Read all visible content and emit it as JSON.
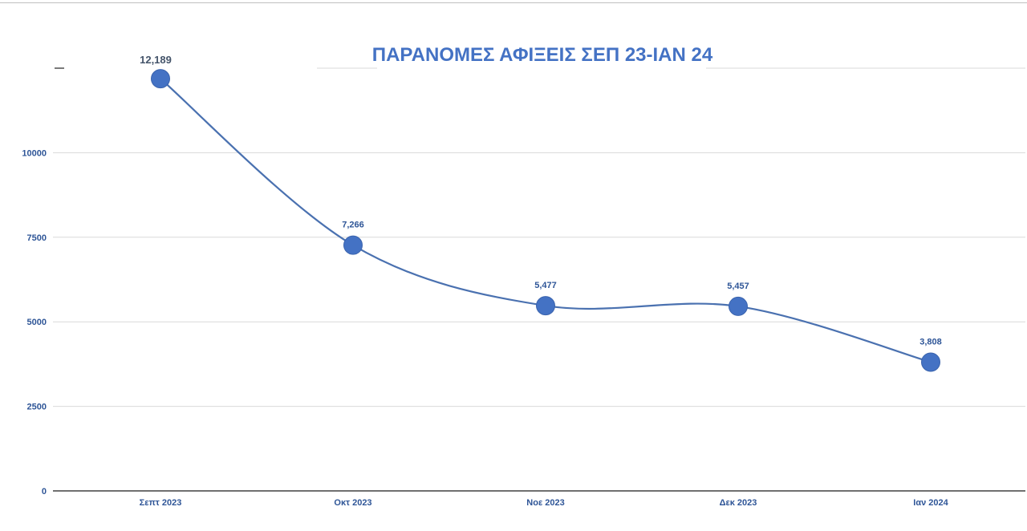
{
  "colors": {
    "series": "#4472C4",
    "line": "#4a71b0",
    "title": "#4472C4",
    "label": "#2e5597",
    "grid": "#d9d9d9",
    "axis": "#404040"
  },
  "chart_data": {
    "type": "line",
    "title": "ΠΑΡΑΝΟΜΕΣ ΑΦΙΞΕΙΣ ΣΕΠ 23-ΙΑΝ 24",
    "xlabel": "",
    "ylabel": "",
    "categories": [
      "Σεπτ 2023",
      "Οκτ 2023",
      "Νοε 2023",
      "Δεκ 2023",
      "Ιαν 2024"
    ],
    "series": [
      {
        "values": [
          12189,
          7266,
          5477,
          5457,
          3808
        ],
        "data_labels": [
          "12,189",
          "7,266",
          "5,477",
          "5,457",
          "3,808"
        ]
      }
    ],
    "ylim": [
      0,
      12500
    ],
    "yticks": [
      0,
      2500,
      5000,
      7500,
      10000
    ],
    "ytick_labels": [
      "0",
      "2500",
      "5000",
      "7500",
      "10000"
    ],
    "grid": true,
    "legend": "none",
    "smooth": true,
    "markers": "circle"
  }
}
